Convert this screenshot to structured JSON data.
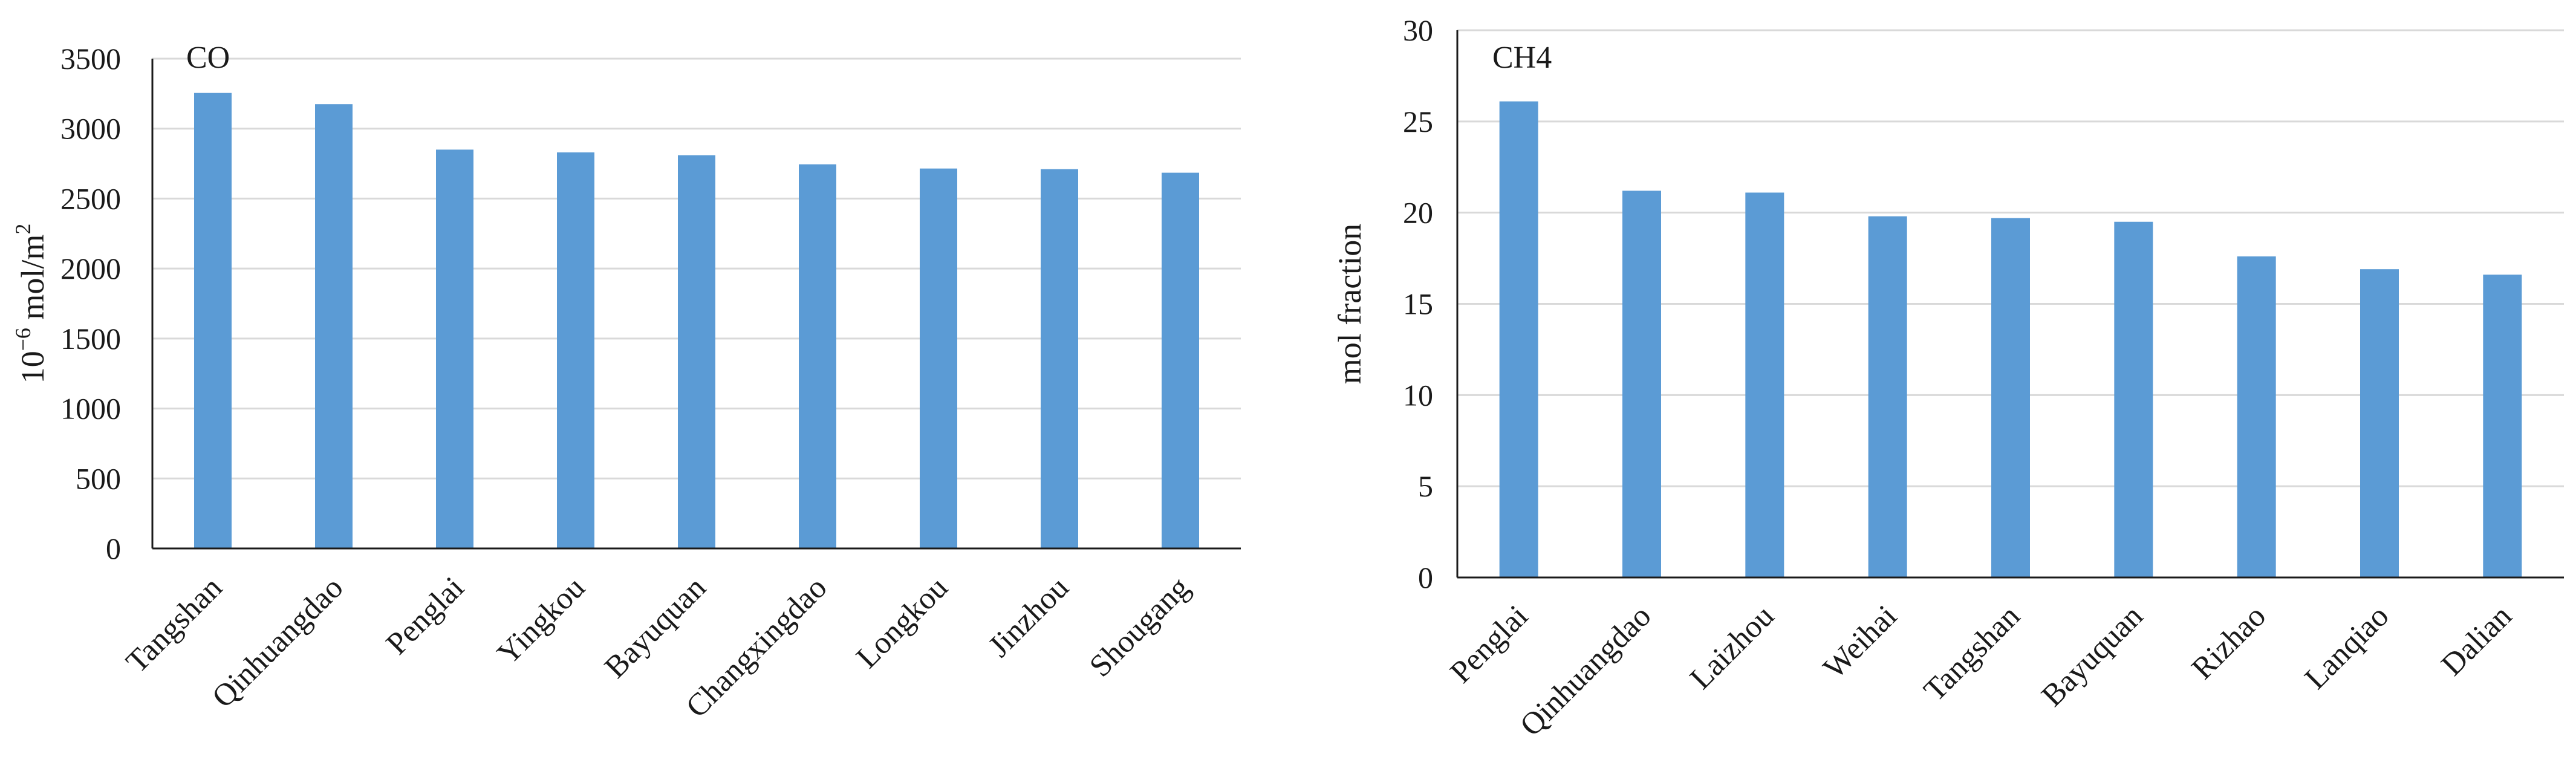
{
  "chart_data": [
    {
      "type": "bar",
      "title": "CO",
      "xlabel": "",
      "ylabel": "10⁻⁶ mol/m²",
      "ylabel_parts": [
        "10",
        "−6",
        " mol/m",
        "2"
      ],
      "categories": [
        "Tangshan",
        "Qinhuangdao",
        "Penglai",
        "Yingkou",
        "Bayuquan",
        "Changxingdao",
        "Longkou",
        "Jinzhou",
        "Shougang"
      ],
      "values": [
        3255,
        3175,
        2850,
        2830,
        2810,
        2745,
        2715,
        2710,
        2685
      ],
      "ylim": [
        0,
        3500
      ],
      "yticks": [
        0,
        500,
        1000,
        1500,
        2000,
        2500,
        3000,
        3500
      ],
      "grid": true,
      "bar_color": "#5b9bd5"
    },
    {
      "type": "bar",
      "title": "CH4",
      "xlabel": "",
      "ylabel": "mol fraction",
      "categories": [
        "Penglai",
        "Qinhuangdao",
        "Laizhou",
        "Weihai",
        "Tangshan",
        "Bayuquan",
        "Rizhao",
        "Lanqiao",
        "Dalian"
      ],
      "values": [
        26.1,
        21.2,
        21.1,
        19.8,
        19.7,
        19.5,
        17.6,
        16.9,
        16.6
      ],
      "ylim": [
        0,
        30
      ],
      "yticks": [
        0,
        5,
        10,
        15,
        20,
        25,
        30
      ],
      "grid": true,
      "bar_color": "#5b9bd5"
    }
  ]
}
